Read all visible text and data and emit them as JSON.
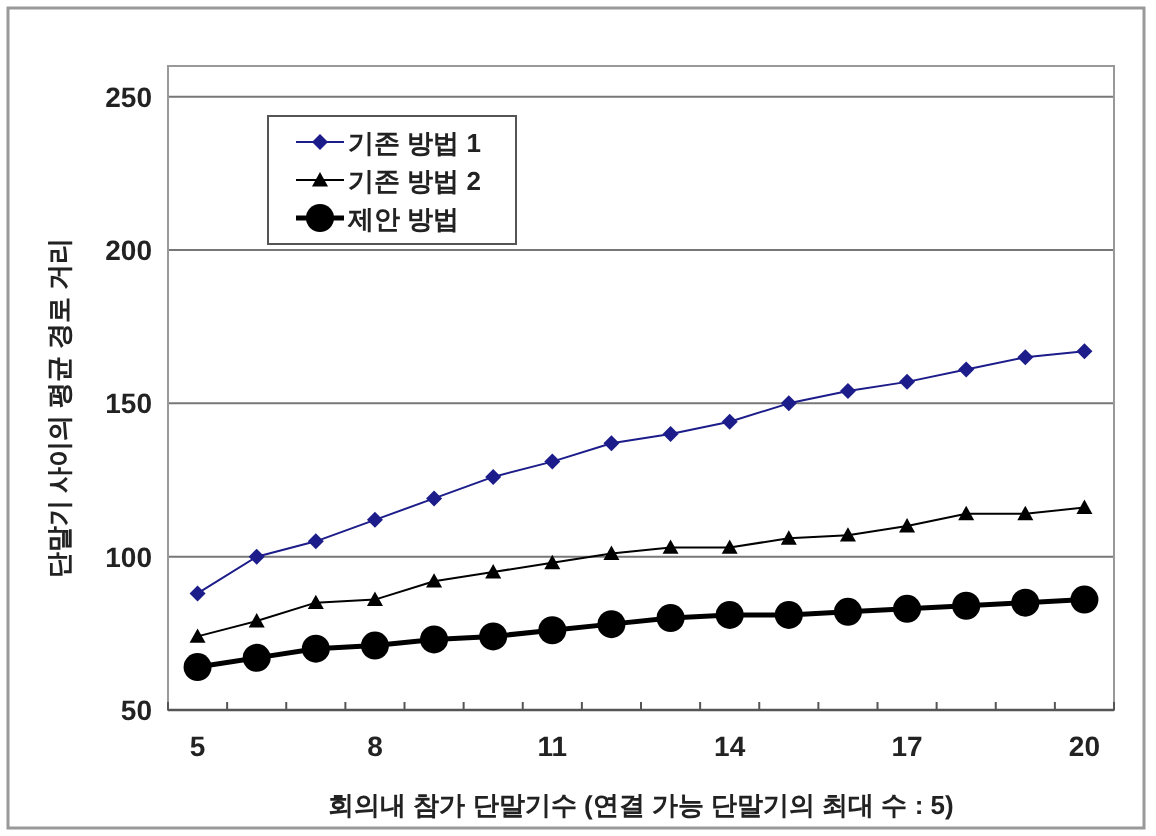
{
  "chart_data": {
    "type": "line",
    "xlabel": "회의내 참가 단말기수 (연결 가능 단말기의 최대 수 : 5)",
    "ylabel": "단말기 사이의 평균 경로 거리",
    "categories": [
      "5",
      null,
      null,
      "8",
      null,
      null,
      "11",
      null,
      null,
      "14",
      null,
      null,
      "17",
      null,
      null,
      "20"
    ],
    "series": [
      {
        "name": "기존 방법 1",
        "color": "#1c1c8a",
        "marker": "diamond",
        "values": [
          88,
          100,
          105,
          112,
          119,
          126,
          131,
          137,
          140,
          144,
          150,
          154,
          157,
          161,
          165,
          167
        ]
      },
      {
        "name": "기존 방법 2",
        "color": "#000000",
        "marker": "triangle",
        "values": [
          74,
          79,
          85,
          86,
          92,
          95,
          98,
          101,
          103,
          103,
          106,
          107,
          110,
          114,
          114,
          116
        ]
      },
      {
        "name": "제안 방법",
        "color": "#000000",
        "marker": "circle",
        "values": [
          64,
          67,
          70,
          71,
          73,
          74,
          76,
          78,
          80,
          81,
          81,
          82,
          83,
          84,
          85,
          86
        ]
      }
    ],
    "ylim": [
      50,
      260
    ],
    "yticks": [
      50,
      100,
      150,
      200,
      250
    ],
    "grid": "y",
    "legend": "top left"
  }
}
